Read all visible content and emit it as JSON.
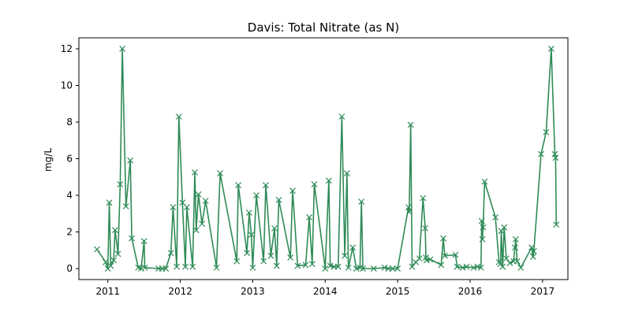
{
  "chart_data": {
    "type": "line",
    "title": "Davis: Total Nitrate (as N)",
    "xlabel": "",
    "ylabel": "mg/L",
    "x_tick_labels": [
      "2011",
      "2012",
      "2013",
      "2014",
      "2015",
      "2016",
      "2017"
    ],
    "y_tick_labels": [
      "0",
      "2",
      "4",
      "6",
      "8",
      "10",
      "12"
    ],
    "xlim": [
      2010.6,
      2017.35
    ],
    "ylim": [
      -0.6,
      12.6
    ],
    "grid": false,
    "legend": "none",
    "marker": "x",
    "line_color": "#2e8b57",
    "series": [
      {
        "x": [
          2010.85,
          2010.97,
          2011.0,
          2011.02,
          2011.04,
          2011.08,
          2011.1,
          2011.14,
          2011.17,
          2011.2,
          2011.25,
          2011.31,
          2011.33,
          2011.42,
          2011.46,
          2011.5,
          2011.51,
          2011.7,
          2011.75,
          2011.8,
          2011.87,
          2011.9,
          2011.95,
          2011.98,
          2012.03,
          2012.07,
          2012.09,
          2012.17,
          2012.2,
          2012.22,
          2012.25,
          2012.3,
          2012.35,
          2012.5,
          2012.55,
          2012.78,
          2012.8,
          2012.92,
          2012.95,
          2012.98,
          2013.0,
          2013.05,
          2013.15,
          2013.18,
          2013.25,
          2013.3,
          2013.33,
          2013.36,
          2013.52,
          2013.55,
          2013.62,
          2013.73,
          2013.78,
          2013.82,
          2013.85,
          2014.0,
          2014.05,
          2014.07,
          2014.12,
          2014.18,
          2014.23,
          2014.27,
          2014.3,
          2014.32,
          2014.38,
          2014.43,
          2014.48,
          2014.5,
          2014.52,
          2014.67,
          2014.82,
          2014.87,
          2014.93,
          2015.0,
          2015.15,
          2015.16,
          2015.18,
          2015.2,
          2015.25,
          2015.3,
          2015.35,
          2015.38,
          2015.39,
          2015.4,
          2015.45,
          2015.6,
          2015.63,
          2015.65,
          2015.8,
          2015.82,
          2015.9,
          2015.95,
          2016.05,
          2016.1,
          2016.15,
          2016.16,
          2016.17,
          2016.18,
          2016.2,
          2016.35,
          2016.4,
          2016.42,
          2016.43,
          2016.45,
          2016.47,
          2016.5,
          2016.55,
          2016.6,
          2016.62,
          2016.63,
          2016.65,
          2016.7,
          2016.85,
          2016.87,
          2016.88,
          2016.98,
          2017.05,
          2017.12,
          2017.17,
          2017.18,
          2017.19
        ],
        "y": [
          1.05,
          0.35,
          0.0,
          3.6,
          0.15,
          0.45,
          2.1,
          0.8,
          4.6,
          12.0,
          3.4,
          5.9,
          1.65,
          0.05,
          0.0,
          1.5,
          0.05,
          0.0,
          0.0,
          0.0,
          0.85,
          3.35,
          0.1,
          8.3,
          3.6,
          0.1,
          3.35,
          0.1,
          5.25,
          2.1,
          4.05,
          2.45,
          3.7,
          0.05,
          5.2,
          0.4,
          4.55,
          0.85,
          3.05,
          1.85,
          0.05,
          4.0,
          0.4,
          4.55,
          0.7,
          2.2,
          0.15,
          3.75,
          0.6,
          4.25,
          0.15,
          0.2,
          2.8,
          0.25,
          4.6,
          0.0,
          4.8,
          0.15,
          0.1,
          0.1,
          8.3,
          0.7,
          5.2,
          0.05,
          1.15,
          0.0,
          0.05,
          3.65,
          0.0,
          0.0,
          0.05,
          0.0,
          0.0,
          0.0,
          3.35,
          3.1,
          7.85,
          0.1,
          0.35,
          0.55,
          3.85,
          2.2,
          0.6,
          0.45,
          0.5,
          0.2,
          1.65,
          0.7,
          0.75,
          0.1,
          0.05,
          0.1,
          0.05,
          0.1,
          0.05,
          2.6,
          1.6,
          2.25,
          4.75,
          2.8,
          0.35,
          0.25,
          2.05,
          0.1,
          2.25,
          0.55,
          0.3,
          0.4,
          1.15,
          1.6,
          0.4,
          0.05,
          1.15,
          0.65,
          0.95,
          6.25,
          7.45,
          12.0,
          6.25,
          6.05,
          2.4
        ]
      }
    ]
  }
}
